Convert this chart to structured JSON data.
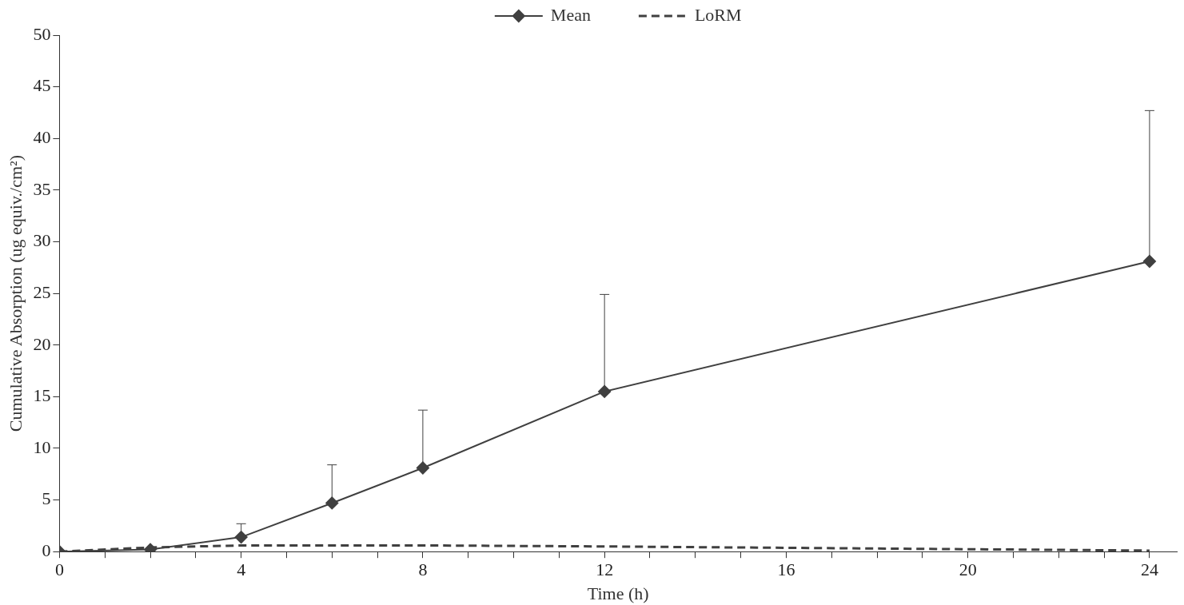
{
  "chart_data": {
    "type": "line",
    "xlabel": "Time (h)",
    "ylabel": "Cumulative Absorption (ug equiv./cm²)",
    "x": [
      0,
      2,
      4,
      6,
      8,
      12,
      24
    ],
    "series": [
      {
        "name": "Mean",
        "color": "#404040",
        "marker": "diamond",
        "line_style": "solid",
        "values": [
          0,
          0.2,
          1.4,
          4.7,
          8.1,
          15.5,
          28.1
        ],
        "errors": [
          null,
          null,
          [
            1.4,
            2.7
          ],
          [
            4.7,
            8.4
          ],
          [
            8.1,
            13.7
          ],
          [
            15.5,
            24.9
          ],
          [
            28.1,
            42.7
          ]
        ]
      },
      {
        "name": "LoRM",
        "color": "#404040",
        "marker": "none",
        "line_style": "dashed",
        "values": [
          0,
          0.4,
          0.6,
          0.6,
          0.6,
          0.5,
          0.1
        ]
      }
    ],
    "xlim": [
      0,
      24.6
    ],
    "xticks": [
      0,
      {
        "value": 1,
        "label": null
      },
      {
        "value": 2,
        "label": null
      },
      {
        "value": 3,
        "label": null
      },
      4,
      {
        "value": 5,
        "label": null
      },
      {
        "value": 6,
        "label": null
      },
      {
        "value": 7,
        "label": null
      },
      8,
      {
        "value": 9,
        "label": null
      },
      {
        "value": 10,
        "label": null
      },
      {
        "value": 11,
        "label": null
      },
      12,
      {
        "value": 13,
        "label": null
      },
      {
        "value": 14,
        "label": null
      },
      {
        "value": 15,
        "label": null
      },
      16,
      {
        "value": 17,
        "label": null
      },
      {
        "value": 18,
        "label": null
      },
      {
        "value": 19,
        "label": null
      },
      20,
      {
        "value": 21,
        "label": null
      },
      {
        "value": 22,
        "label": null
      },
      {
        "value": 23,
        "label": null
      },
      24
    ],
    "ylim": [
      0,
      50
    ],
    "yticks": [
      0,
      5,
      10,
      15,
      20,
      25,
      30,
      35,
      40,
      45,
      50
    ],
    "grid": false,
    "legend": "top"
  }
}
